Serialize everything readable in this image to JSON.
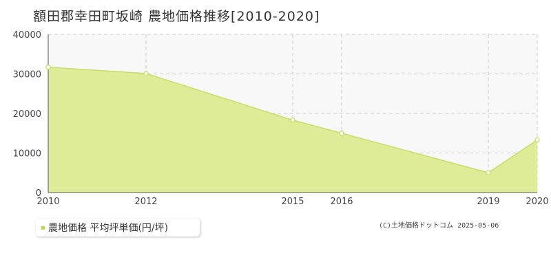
{
  "header": {
    "title": "額田郡幸田町坂崎 農地価格推移[2010-2020]"
  },
  "legend": {
    "label": "農地価格 平均坪単価(円/坪)"
  },
  "footer": {
    "copyright": "(C)土地価格ドットコム 2025-05-06"
  },
  "colors": {
    "fill": "#deeb97",
    "line": "#c5e066",
    "marker_fill": "#ffffff",
    "grid": "#cccccc",
    "axis": "#555555",
    "plot_bg": "#f8f8f8"
  },
  "chart_data": {
    "type": "area",
    "x": [
      2010,
      2012,
      2015,
      2016,
      2019,
      2020
    ],
    "y": [
      31700,
      30100,
      18300,
      15000,
      5000,
      13300
    ],
    "xlim": [
      2010,
      2020
    ],
    "ylim": [
      0,
      40000
    ],
    "yticks": [
      0,
      10000,
      20000,
      30000,
      40000
    ],
    "xticks": [
      2010,
      2012,
      2015,
      2016,
      2019,
      2020
    ],
    "grid": true,
    "legend_position": "bottom-left"
  }
}
